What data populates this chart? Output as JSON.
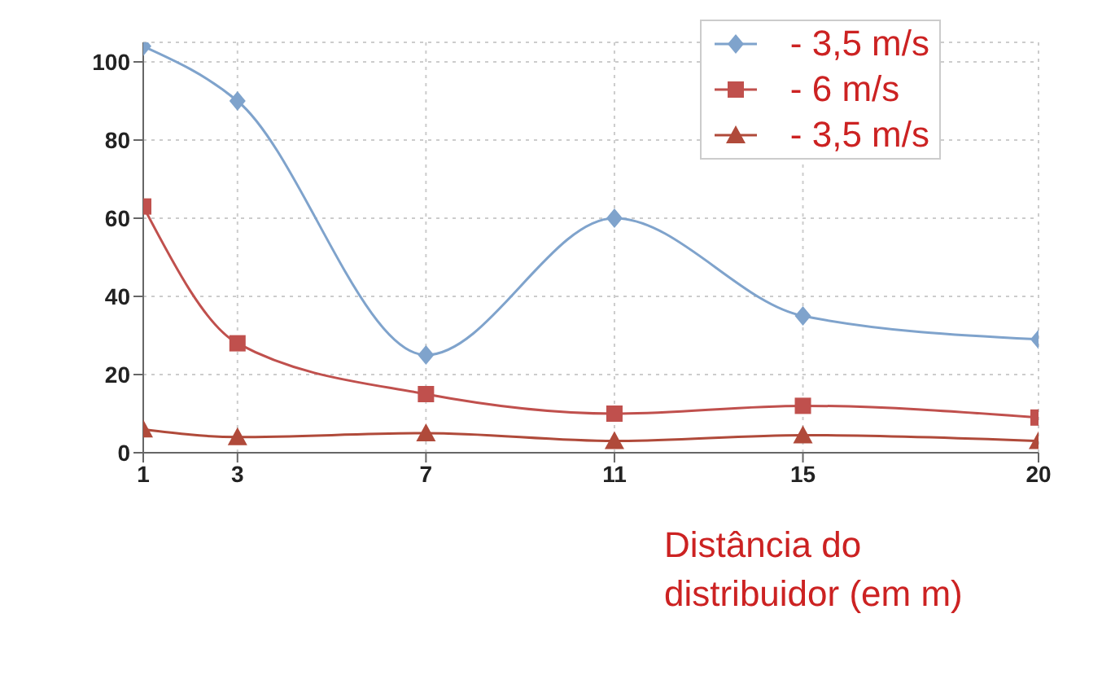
{
  "chart_data": {
    "type": "line",
    "xlabel": "Distância do distribuidor (em m)",
    "x": [
      1,
      3,
      7,
      11,
      15,
      20
    ],
    "xlim": [
      1,
      20
    ],
    "xticks": [
      1,
      3,
      7,
      11,
      15,
      20
    ],
    "ylim": [
      0,
      105
    ],
    "yticks": [
      0,
      20,
      40,
      60,
      80,
      100
    ],
    "grid": true,
    "legend": "top right",
    "series": [
      {
        "name": "- 3,5 m/s",
        "color": "#7fa3cc",
        "marker": "diamond",
        "values": [
          104,
          90,
          25,
          60,
          35,
          29
        ]
      },
      {
        "name": "- 6 m/s",
        "color": "#c0504d",
        "marker": "square",
        "values": [
          63,
          28,
          15,
          10,
          12,
          9
        ]
      },
      {
        "name": "- 3,5 m/s",
        "color": "#b04a3a",
        "marker": "triangle",
        "values": [
          6,
          4,
          5,
          3,
          4.5,
          3
        ]
      }
    ]
  }
}
